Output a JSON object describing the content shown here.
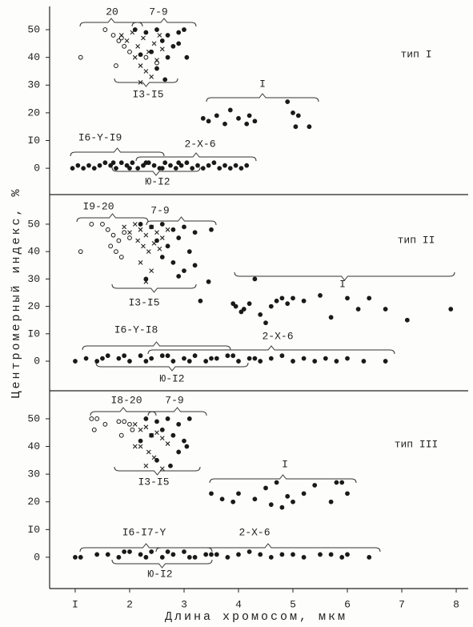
{
  "chart_data": [
    {
      "type": "scatter",
      "label": "тип I",
      "xlim": [
        0.53,
        8.22
      ],
      "ylim": [
        -9.5,
        58.4
      ],
      "yticks": [
        0,
        {
          "value": 10,
          "label": "I0"
        },
        20,
        30,
        40,
        50
      ],
      "annotations": [
        "20",
        "7-9",
        "I3-I5",
        "I",
        "I6-Y-I9",
        "2-X-6",
        "Ю-I2"
      ],
      "series": [
        {
          "marker": "open",
          "x": [
            1.1,
            1.55,
            1.7,
            1.8,
            1.9,
            2.0,
            2.3,
            2.5,
            1.75,
            1.85
          ],
          "y": [
            40,
            50,
            48,
            46,
            44,
            42,
            40,
            38,
            37,
            47
          ]
        },
        {
          "marker": "cross",
          "x": [
            1.85,
            1.95,
            2.05,
            2.15,
            2.25,
            2.35,
            2.45,
            2.55,
            2.2,
            2.3,
            2.4,
            2.1,
            2.6,
            2.5,
            2.2
          ],
          "y": [
            48,
            46,
            49,
            44,
            47,
            42,
            45,
            48,
            37,
            35,
            33,
            40,
            43,
            39,
            31
          ]
        },
        {
          "marker": "dot",
          "x": [
            2.1,
            2.3,
            2.5,
            2.7,
            2.9,
            3.0,
            2.6,
            2.8,
            2.4,
            2.2,
            2.7,
            2.9,
            3.05,
            2.5,
            2.65,
            3.35,
            3.45,
            3.6,
            3.75,
            3.85,
            4.0,
            4.15,
            4.2,
            4.3,
            4.9,
            5.0,
            5.1,
            5.3,
            5.05
          ],
          "y": [
            50,
            49,
            50,
            48,
            49,
            50,
            46,
            44,
            42,
            41,
            40,
            45,
            40,
            36,
            32,
            18,
            17,
            19,
            16,
            21,
            18,
            16,
            19,
            17,
            24,
            20,
            19,
            15,
            15
          ]
        },
        {
          "marker": "dot",
          "x": [
            0.95,
            1.05,
            1.15,
            1.25,
            1.35,
            1.45,
            1.55,
            1.65,
            1.75,
            1.85,
            1.95,
            2.05,
            2.15,
            2.25,
            2.35,
            2.45,
            2.55,
            2.65,
            2.75,
            2.85,
            2.95,
            3.05,
            3.15,
            3.25,
            3.35,
            3.45,
            3.55,
            3.65,
            3.75,
            3.85,
            3.95,
            4.05,
            4.15,
            1.7,
            2.0,
            2.3,
            2.6,
            2.9
          ],
          "y": [
            0,
            1,
            0,
            1,
            0,
            1,
            2,
            1,
            0,
            2,
            1,
            2,
            0,
            1,
            2,
            1,
            0,
            2,
            1,
            0,
            1,
            2,
            0,
            1,
            0,
            1,
            2,
            0,
            1,
            0,
            1,
            0,
            1,
            2,
            0,
            2,
            0,
            2
          ]
        }
      ]
    },
    {
      "type": "scatter",
      "label": "тип II",
      "ylabel": "Центромерный индекс, %",
      "xlim": [
        0.53,
        8.22
      ],
      "ylim": [
        -10.8,
        60.8
      ],
      "yticks": [
        0,
        {
          "value": 10,
          "label": "I0"
        },
        20,
        30,
        40,
        50
      ],
      "annotations": [
        "I9-20",
        "7-9",
        "I3-I5",
        "I",
        "I6-Y-I8",
        "2-X-6",
        "Ю-I2"
      ],
      "series": [
        {
          "marker": "open",
          "x": [
            1.1,
            1.3,
            1.5,
            1.6,
            1.7,
            1.8,
            1.65,
            1.75,
            1.9,
            2.0,
            1.85
          ],
          "y": [
            40,
            50,
            50,
            48,
            46,
            44,
            42,
            40,
            47,
            45,
            38
          ]
        },
        {
          "marker": "cross",
          "x": [
            1.9,
            2.0,
            2.1,
            2.2,
            2.3,
            2.4,
            2.5,
            2.6,
            2.7,
            2.15,
            2.25,
            2.35,
            2.45,
            2.55,
            2.4,
            2.3,
            2.2
          ],
          "y": [
            49,
            47,
            50,
            48,
            46,
            49,
            47,
            45,
            48,
            44,
            42,
            40,
            43,
            41,
            33,
            29,
            36
          ]
        },
        {
          "marker": "dot",
          "x": [
            2.2,
            2.4,
            2.6,
            2.8,
            3.0,
            3.2,
            3.5,
            2.5,
            2.7,
            2.9,
            3.1,
            2.6,
            2.8,
            3.0,
            3.2,
            2.3,
            2.9,
            3.3,
            3.45,
            3.95,
            4.1,
            4.2,
            4.3,
            4.4,
            4.5,
            4.6,
            4.7,
            4.8,
            4.9,
            5.0,
            5.2,
            5.5,
            5.7,
            6.0,
            6.2,
            6.4,
            6.7,
            7.1,
            7.9,
            3.9,
            4.05
          ],
          "y": [
            50,
            49,
            50,
            48,
            49,
            47,
            48,
            44,
            42,
            45,
            40,
            38,
            36,
            33,
            35,
            30,
            31,
            22,
            29,
            20,
            19,
            21,
            30,
            17,
            14,
            20,
            22,
            23,
            21,
            23,
            22,
            24,
            16,
            23,
            19,
            23,
            19,
            15,
            19,
            21,
            18
          ]
        },
        {
          "marker": "dot",
          "x": [
            1.2,
            1.4,
            1.6,
            1.8,
            2.0,
            2.2,
            2.4,
            2.6,
            2.8,
            3.0,
            3.2,
            3.4,
            3.6,
            3.8,
            4.0,
            4.2,
            4.4,
            4.6,
            4.8,
            5.0,
            5.2,
            5.4,
            5.6,
            5.8,
            6.0,
            6.3,
            6.7,
            1.5,
            1.9,
            2.3,
            2.7,
            3.1,
            3.5,
            3.9,
            4.3,
            1.0
          ],
          "y": [
            1,
            0,
            2,
            1,
            0,
            2,
            1,
            2,
            0,
            1,
            2,
            0,
            1,
            2,
            0,
            1,
            0,
            1,
            2,
            0,
            1,
            0,
            1,
            0,
            1,
            0,
            0,
            1,
            2,
            0,
            2,
            0,
            1,
            2,
            1,
            0
          ]
        }
      ]
    },
    {
      "type": "scatter",
      "label": "тип III",
      "xlabel": "Длина хромосом, мкм",
      "xlim": [
        0.53,
        8.22
      ],
      "ylim": [
        -11.3,
        60.1
      ],
      "xticks": [
        {
          "value": 1,
          "label": "I"
        },
        2,
        3,
        4,
        5,
        6,
        7,
        8
      ],
      "yticks": [
        0,
        {
          "value": 10,
          "label": "I0"
        },
        20,
        30,
        40,
        50
      ],
      "annotations": [
        "I8-20",
        "7-9",
        "I3-I5",
        "I",
        "I6-I7-Y",
        "2-X-6",
        "Ю-I2"
      ],
      "series": [
        {
          "marker": "open",
          "x": [
            1.3,
            1.4,
            1.35,
            1.55,
            1.8,
            1.9,
            2.0,
            2.05,
            1.85
          ],
          "y": [
            50,
            50,
            46,
            48,
            49,
            49,
            48,
            46,
            44
          ]
        },
        {
          "marker": "cross",
          "x": [
            2.1,
            2.2,
            2.3,
            2.4,
            2.5,
            2.6,
            2.2,
            2.35,
            2.45,
            2.7,
            2.6,
            2.3,
            2.1
          ],
          "y": [
            48,
            46,
            47,
            44,
            45,
            43,
            40,
            38,
            36,
            41,
            32,
            33,
            40
          ]
        },
        {
          "marker": "dot",
          "x": [
            2.3,
            2.5,
            2.7,
            2.9,
            3.1,
            2.6,
            2.8,
            3.0,
            2.2,
            2.4,
            2.9,
            3.05,
            2.5,
            2.75,
            3.5,
            3.7,
            3.9,
            4.0,
            4.3,
            4.5,
            4.6,
            4.7,
            4.8,
            4.9,
            5.0,
            5.2,
            5.4,
            5.7,
            5.8,
            5.9,
            6.0
          ],
          "y": [
            50,
            49,
            50,
            48,
            50,
            46,
            44,
            42,
            42,
            44,
            38,
            40,
            35,
            33,
            23,
            21,
            20,
            23,
            21,
            25,
            19,
            27,
            18,
            22,
            20,
            23,
            26,
            20,
            27,
            27,
            23
          ]
        },
        {
          "marker": "dot",
          "x": [
            1.0,
            1.1,
            1.4,
            1.6,
            1.8,
            2.0,
            2.2,
            2.4,
            2.6,
            2.8,
            3.0,
            3.2,
            3.4,
            3.6,
            3.8,
            4.0,
            4.2,
            4.4,
            4.6,
            4.8,
            5.0,
            5.2,
            5.5,
            5.7,
            5.9,
            6.0,
            6.4,
            1.9,
            2.3,
            2.7,
            3.1,
            3.5
          ],
          "y": [
            0,
            0,
            1,
            1,
            0,
            2,
            1,
            2,
            0,
            1,
            2,
            0,
            1,
            1,
            0,
            1,
            2,
            1,
            0,
            1,
            1,
            0,
            1,
            1,
            0,
            1,
            0,
            2,
            0,
            2,
            0,
            1
          ]
        }
      ]
    }
  ]
}
